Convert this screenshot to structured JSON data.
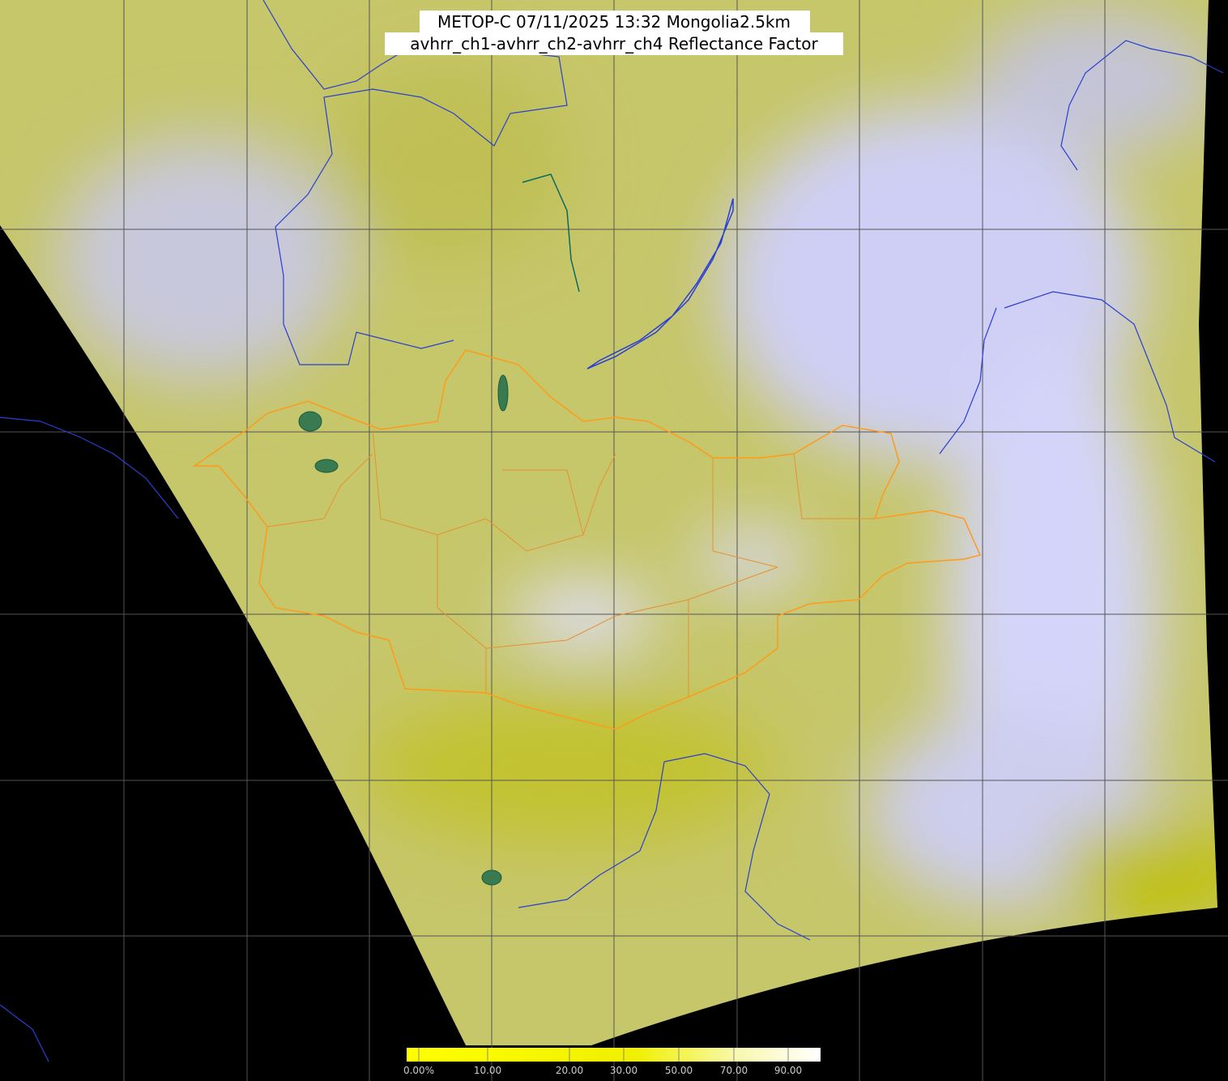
{
  "title": {
    "line1": "METOP-C 07/11/2025 13:32 Mongolia2.5km",
    "line2": "avhrr_ch1-avhrr_ch2-avhrr_ch4 Reflectance Factor"
  },
  "colorbar": {
    "labels": [
      "0.00%",
      "10.00",
      "20.00",
      "30.00",
      "50.00",
      "70.00",
      "90.00"
    ]
  }
}
